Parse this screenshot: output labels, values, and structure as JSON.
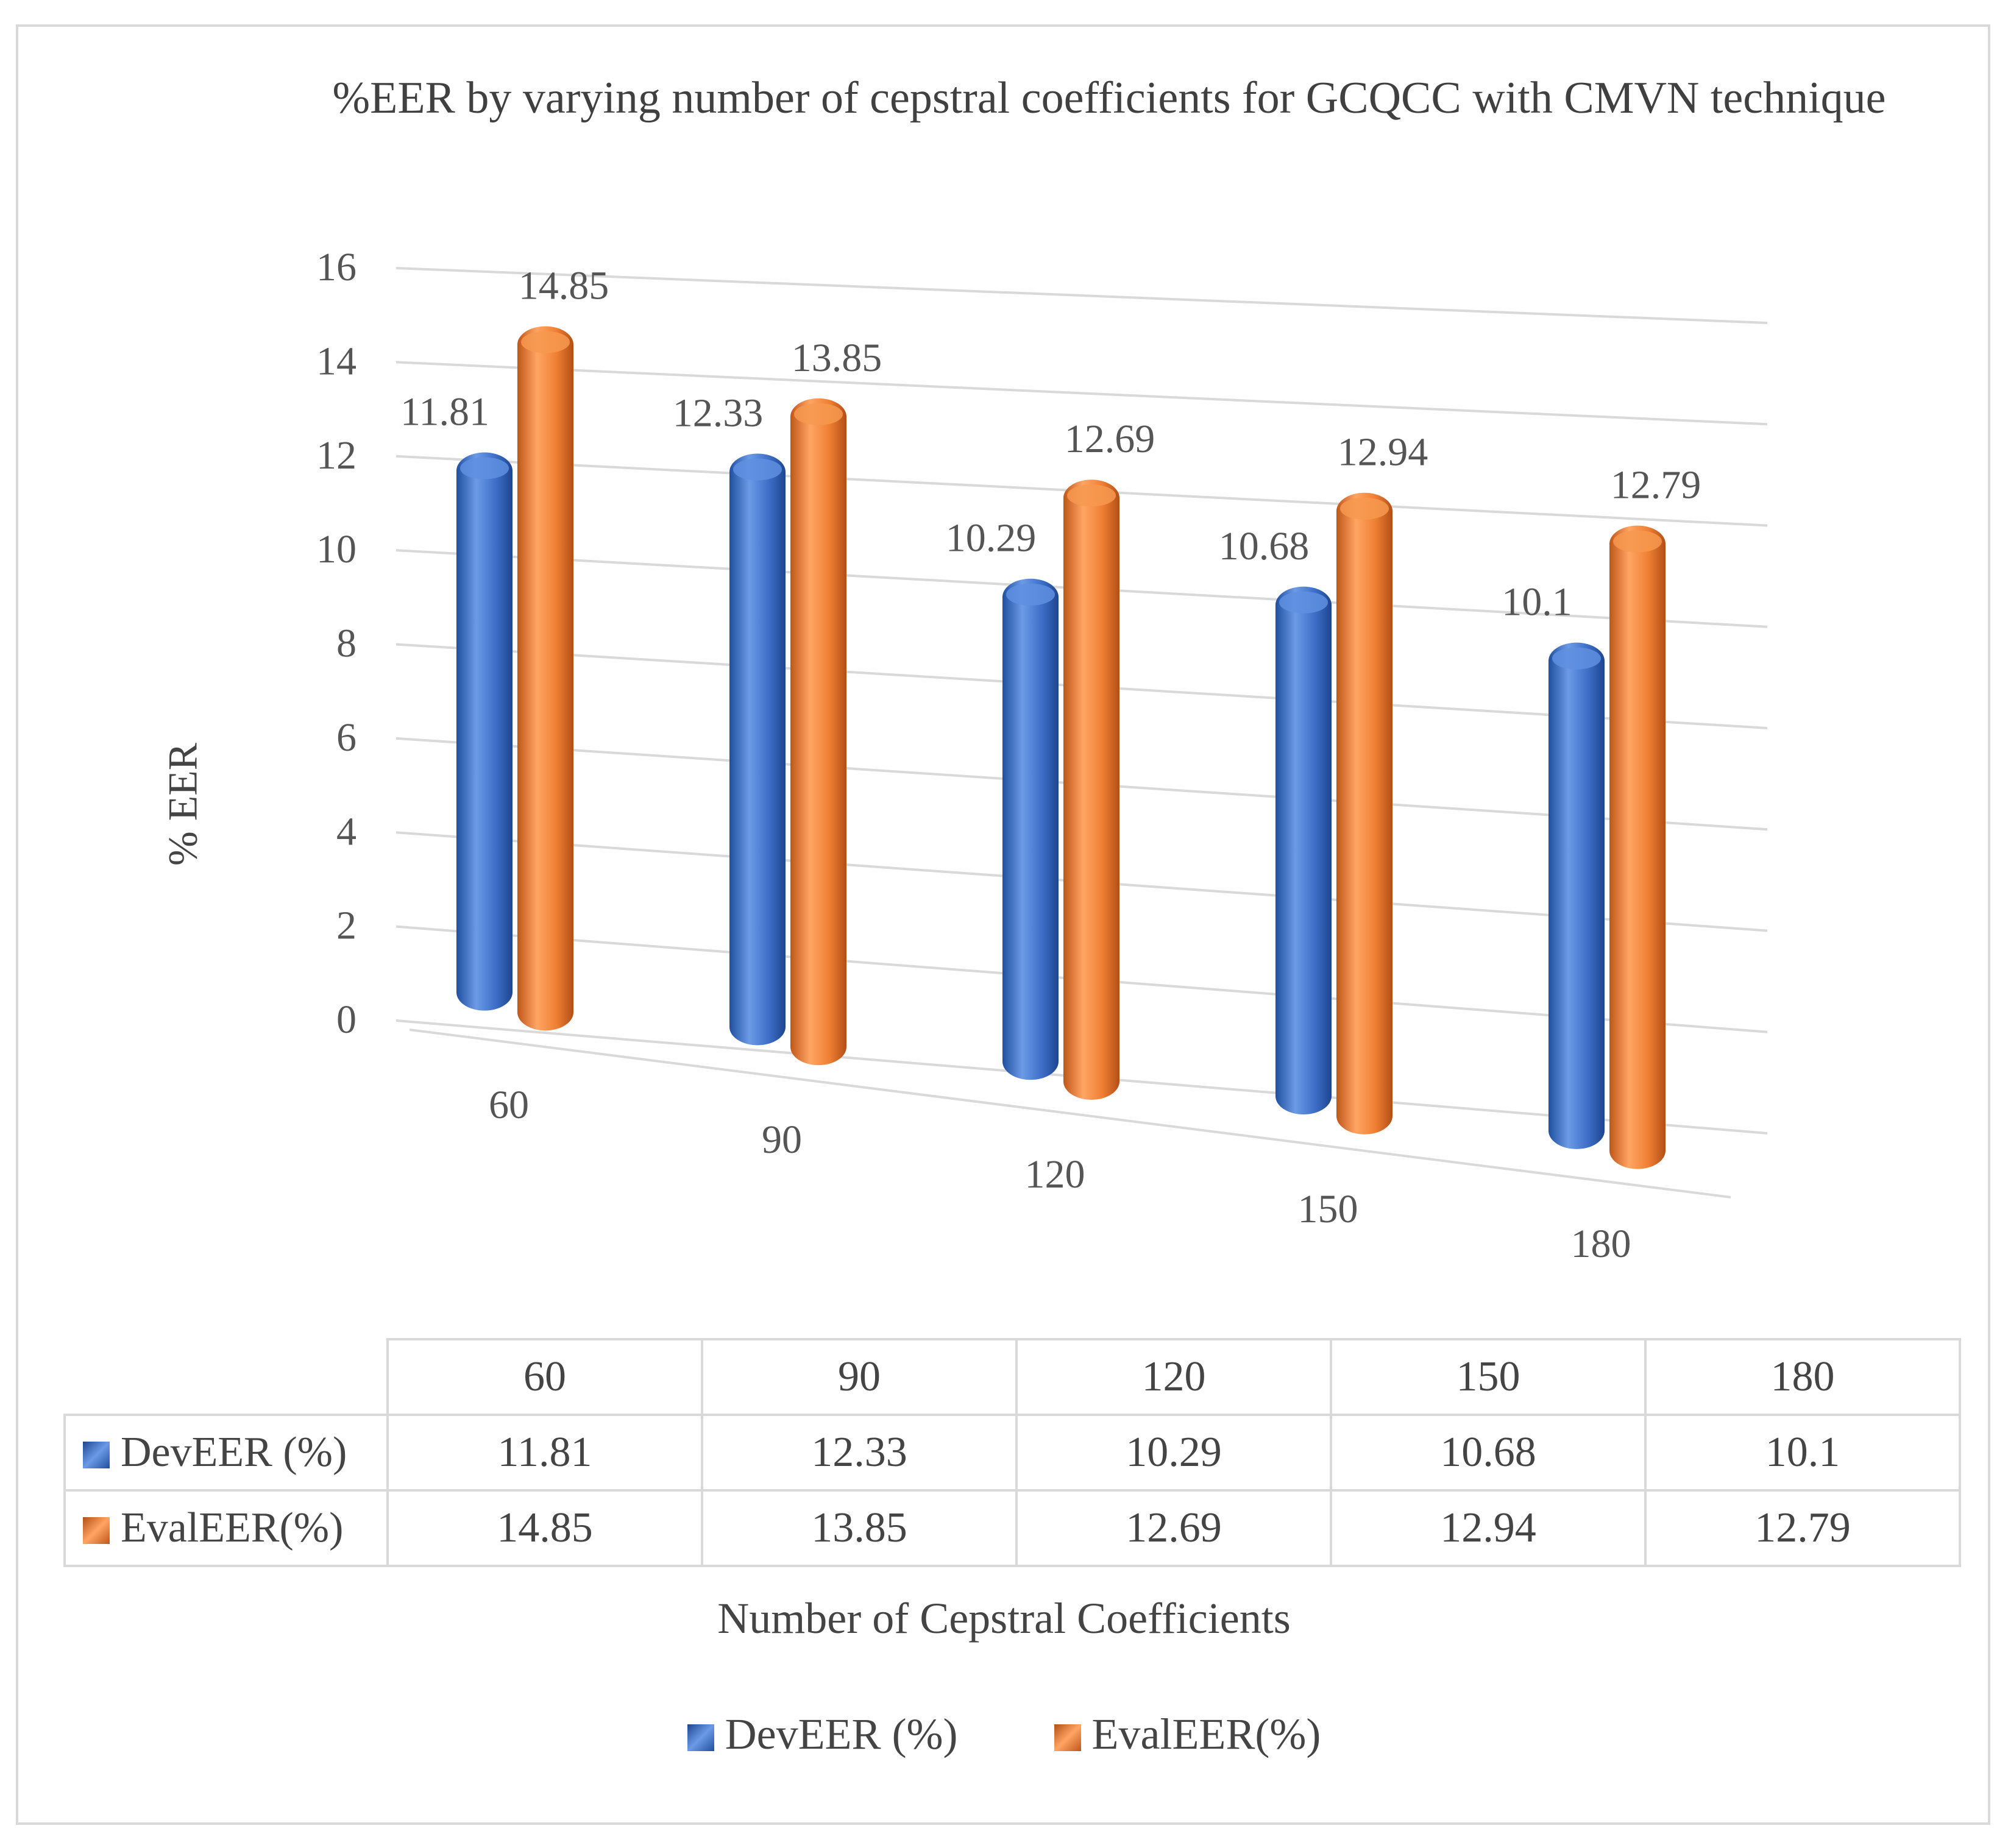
{
  "chart_data": {
    "type": "bar",
    "title": "%EER by varying number of cepstral coefficients for GCQCC with CMVN technique",
    "xlabel": "Number of Cepstral Coefficients",
    "ylabel": "% EER",
    "categories": [
      "60",
      "90",
      "120",
      "150",
      "180"
    ],
    "series": [
      {
        "name": "DevEER (%)",
        "color": "#3d6fc8",
        "values": [
          11.81,
          12.33,
          10.29,
          10.68,
          10.1
        ]
      },
      {
        "name": "EvalEER(%)",
        "color": "#ed7d31",
        "values": [
          14.85,
          13.85,
          12.69,
          12.94,
          12.79
        ]
      }
    ],
    "y_ticks": [
      "0",
      "2",
      "4",
      "6",
      "8",
      "10",
      "12",
      "14",
      "16"
    ],
    "ylim": [
      0,
      16
    ],
    "grid": true,
    "legend": "bottom",
    "data_table": true
  },
  "table": {
    "rows": [
      {
        "label": "DevEER (%)",
        "values": [
          "11.81",
          "12.33",
          "10.29",
          "10.68",
          "10.1"
        ]
      },
      {
        "label": "EvalEER(%)",
        "values": [
          "14.85",
          "13.85",
          "12.69",
          "12.94",
          "12.79"
        ]
      }
    ]
  },
  "legend": {
    "items": [
      "DevEER (%)",
      "EvalEER(%)"
    ]
  }
}
